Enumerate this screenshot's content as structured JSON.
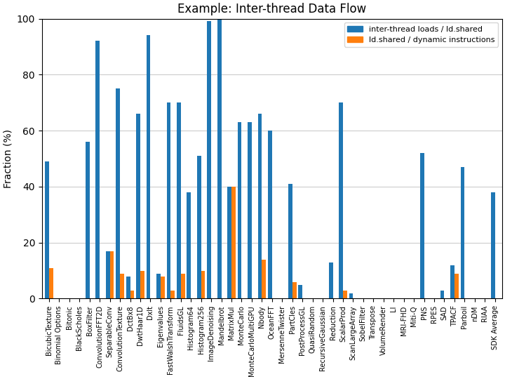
{
  "chart_data": {
    "type": "bar",
    "title": "Example: Inter-thread Data Flow",
    "categories": [
      "BicubicTexture",
      "Binomial Options",
      "Bitonic",
      "BlackScholes",
      "BoxFilter",
      "ConvolutionFFT2D",
      "SeparableConv",
      "ConvolutionTexture",
      "DctBx8",
      "DwtHaar1D",
      "Dxlt",
      "Eigenvalues",
      "FastWalshTransform",
      "FluidsGL",
      "Histogram64",
      "Histogram256",
      "ImageDenoising",
      "Mandelbrot",
      "MatrixMul",
      "MonteCarlo",
      "MonteCarloMultiGPU",
      "Nbody",
      "OceanFFT",
      "MersenneTwister",
      "PartCles",
      "PostProcessGL",
      "QuasiRandom",
      "RecursiveGaussian",
      "Reduction",
      "ScalarProd",
      "ScanLargeArray",
      "SobelFilter",
      "Transpose",
      "VolumeRender",
      "LI",
      "MRI-FHD",
      "Miti-Q",
      "PNS",
      "RPES",
      "SAD",
      "TPACF",
      "Parboil",
      "nDM",
      "RIAA",
      "SDK Average"
    ],
    "series": [
      {
        "name": "inter-thread loads / ld.shared",
        "values": [
          49,
          0,
          0,
          0,
          56,
          92,
          17,
          75,
          8,
          66,
          94,
          9,
          70,
          70,
          38,
          51,
          99,
          100,
          40,
          63,
          63,
          66,
          60,
          0,
          41,
          5,
          0,
          0,
          13,
          70,
          2,
          0,
          0,
          0,
          0,
          0,
          0,
          52,
          0,
          3,
          12,
          47,
          0,
          0,
          38
        ]
      },
      {
        "name": "ld.shared / dynamic instructions",
        "values": [
          11,
          0,
          0,
          0,
          0,
          0,
          17,
          9,
          3,
          10,
          0,
          8,
          3,
          9,
          0,
          10,
          0,
          0,
          40,
          0,
          0,
          14,
          0,
          0,
          6,
          0,
          0,
          0,
          0,
          3,
          0,
          0,
          0,
          0,
          0,
          0,
          0,
          0,
          0,
          0,
          9,
          0,
          0,
          0,
          0
        ]
      }
    ],
    "ylabel": "Fraction (%)",
    "ylim": [
      0,
      100
    ],
    "yticks": [
      0,
      20,
      40,
      60,
      80,
      100
    ],
    "grid": true,
    "legend": "upper right"
  }
}
